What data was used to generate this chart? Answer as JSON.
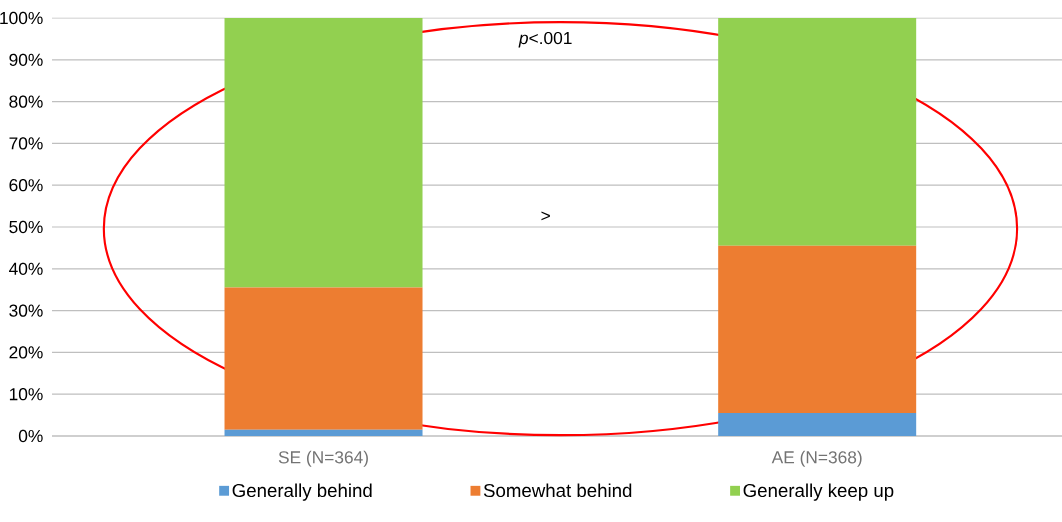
{
  "chart_data": {
    "type": "bar",
    "stacked": true,
    "categories": [
      "SE (N=364)",
      "AE (N=368)"
    ],
    "series": [
      {
        "name": "Generally behind",
        "color": "#5b9bd5",
        "values": [
          1.5,
          5.5
        ]
      },
      {
        "name": "Somewhat behind",
        "color": "#ed7d31",
        "values": [
          34,
          40
        ]
      },
      {
        "name": "Generally keep up",
        "color": "#92d050",
        "values": [
          64.5,
          54.5
        ]
      }
    ],
    "ylim": [
      0,
      100
    ],
    "yticks": [
      {
        "value": 0,
        "label": "0%"
      },
      {
        "value": 10,
        "label": "10%"
      },
      {
        "value": 20,
        "label": "20%"
      },
      {
        "value": 30,
        "label": "30%"
      },
      {
        "value": 40,
        "label": "40%"
      },
      {
        "value": 50,
        "label": "50%"
      },
      {
        "value": 60,
        "label": "60%"
      },
      {
        "value": 70,
        "label": "70%"
      },
      {
        "value": 80,
        "label": "80%"
      },
      {
        "value": 90,
        "label": "90%"
      },
      {
        "value": 100,
        "label": "100%"
      }
    ],
    "grid": "y",
    "legend": "bottom",
    "annotations": [
      "*p*<.001",
      ">"
    ]
  }
}
